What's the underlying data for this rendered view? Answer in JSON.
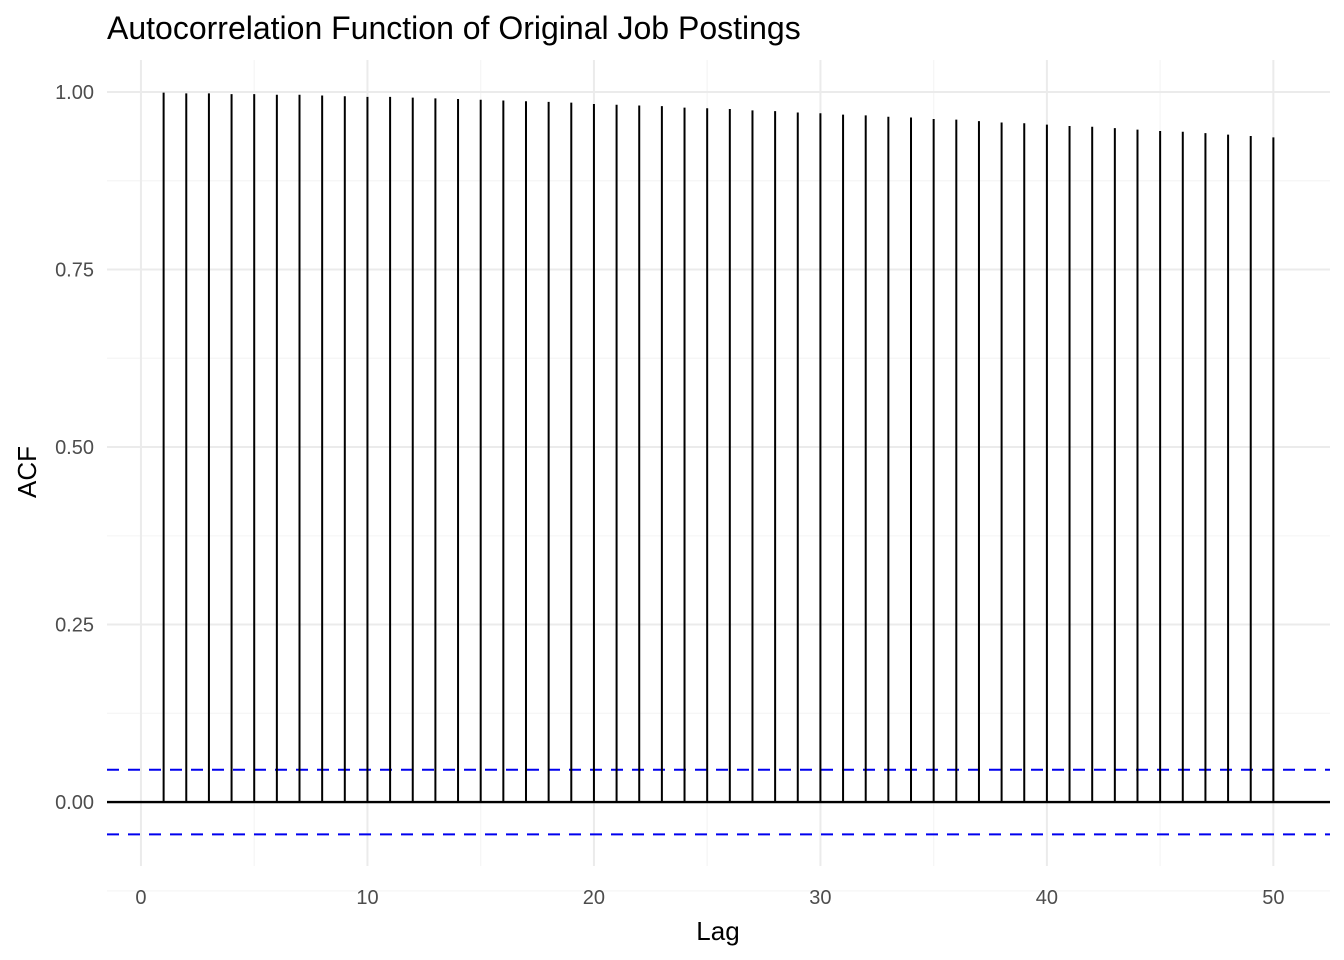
{
  "chart_data": {
    "type": "bar",
    "title": "Autocorrelation Function of Original Job Postings",
    "xlabel": "Lag",
    "ylabel": "ACF",
    "xlim": [
      -1.5,
      52.5
    ],
    "ylim": [
      -0.09,
      1.045
    ],
    "x_ticks": [
      0,
      10,
      20,
      30,
      40,
      50
    ],
    "x_tick_labels": [
      "0",
      "10",
      "20",
      "30",
      "40",
      "50"
    ],
    "y_ticks": [
      0,
      0.25,
      0.5,
      0.75,
      1.0
    ],
    "y_tick_labels": [
      "0.00",
      "0.25",
      "0.50",
      "0.75",
      "1.00"
    ],
    "grid": true,
    "confidence_bound": 0.0455,
    "lags": [
      1,
      2,
      3,
      4,
      5,
      6,
      7,
      8,
      9,
      10,
      11,
      12,
      13,
      14,
      15,
      16,
      17,
      18,
      19,
      20,
      21,
      22,
      23,
      24,
      25,
      26,
      27,
      28,
      29,
      30,
      31,
      32,
      33,
      34,
      35,
      36,
      37,
      38,
      39,
      40,
      41,
      42,
      43,
      44,
      45,
      46,
      47,
      48,
      49,
      50
    ],
    "values": [
      0.999,
      0.998,
      0.998,
      0.997,
      0.997,
      0.996,
      0.996,
      0.995,
      0.994,
      0.993,
      0.993,
      0.992,
      0.991,
      0.99,
      0.989,
      0.988,
      0.987,
      0.986,
      0.985,
      0.983,
      0.982,
      0.981,
      0.98,
      0.978,
      0.977,
      0.976,
      0.974,
      0.973,
      0.971,
      0.97,
      0.968,
      0.967,
      0.965,
      0.964,
      0.962,
      0.961,
      0.959,
      0.957,
      0.956,
      0.954,
      0.952,
      0.951,
      0.949,
      0.947,
      0.945,
      0.944,
      0.942,
      0.94,
      0.938,
      0.936
    ],
    "colors": {
      "stem": "#000000",
      "baseline": "#000000",
      "bound": "#0000ee",
      "grid_major": "#ebebeb",
      "grid_minor": "#f5f5f5",
      "tick_text": "#4d4d4d"
    }
  }
}
